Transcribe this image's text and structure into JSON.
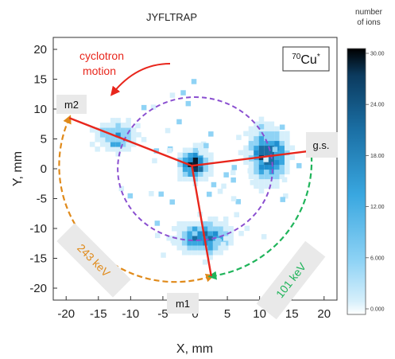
{
  "title": "JYFLTRAP",
  "colors": {
    "ion_dark": "#0b3a5e",
    "ion_mid": "#1f8fd0",
    "ion_light": "#8fd3f5",
    "fit_line": "#e8261c",
    "circle": "#8a4fd0",
    "arc_orange": "#e08a1a",
    "arc_green": "#1fb45a",
    "annotation": "#e8261c",
    "box_fill": "#e9e9e9"
  },
  "chart_data": {
    "type": "heatmap",
    "title": "JYFLTRAP",
    "xlabel": "X, mm",
    "ylabel": "Y, mm",
    "xlim": [
      -22,
      22
    ],
    "ylim": [
      -22,
      22
    ],
    "xticks": [
      "-20",
      "-15",
      "-10",
      "-5",
      "0",
      "5",
      "10",
      "15",
      "20"
    ],
    "yticks": [
      "20",
      "15",
      "10",
      "5",
      "0",
      "-5",
      "-10",
      "-15",
      "-20"
    ],
    "grid": false,
    "colorbar": {
      "title_lines": [
        "number",
        "of ions"
      ],
      "ticks": [
        "30.00",
        "24.00",
        "18.00",
        "12.00",
        "6.000",
        "0.000"
      ],
      "tick_values": [
        30,
        24,
        18,
        12,
        6,
        0
      ],
      "range": [
        0,
        30
      ]
    },
    "clusters": [
      {
        "name": "center",
        "x": -0.5,
        "y": 0.5,
        "sx": 1.2,
        "sy": 1.3,
        "peak": 30
      },
      {
        "name": "g.s.",
        "x": 11,
        "y": 2,
        "sx": 1.6,
        "sy": 2.4,
        "peak": 26
      },
      {
        "name": "m1",
        "x": 1,
        "y": -12,
        "sx": 2.2,
        "sy": 1.5,
        "peak": 20
      },
      {
        "name": "m2",
        "x": -12.5,
        "y": 5,
        "sx": 1.7,
        "sy": 1.4,
        "peak": 14
      }
    ],
    "center_point": {
      "x": -0.5,
      "y": 0.5
    },
    "fit_lines": [
      {
        "to": "m2",
        "x": -19.5,
        "y": 8.5
      },
      {
        "to": "g.s.",
        "x": 18,
        "y": 3
      },
      {
        "to": "m1",
        "x": 2.5,
        "y": -18
      }
    ],
    "reference_circle": {
      "cx": 0,
      "cy": 0,
      "r": 12
    },
    "arcs": [
      {
        "name": "243 keV",
        "r": 18,
        "from_x": -19.5,
        "from_y": 8.5,
        "to_x": 2.5,
        "to_y": -18,
        "color": "orange"
      },
      {
        "name": "101 keV",
        "r": 18,
        "from_x": 2.5,
        "from_y": -18,
        "to_x": 18,
        "to_y": 3,
        "color": "green"
      }
    ],
    "annotations": {
      "motion_line1": "cyclotron",
      "motion_line2": "motion",
      "isotope_mass": "70",
      "isotope_symbol": "Cu",
      "isotope_suffix": "*",
      "label_m2": "m2",
      "label_m1": "m1",
      "label_gs": "g.s.",
      "label_243": "243 keV",
      "label_101": "101 keV"
    }
  }
}
